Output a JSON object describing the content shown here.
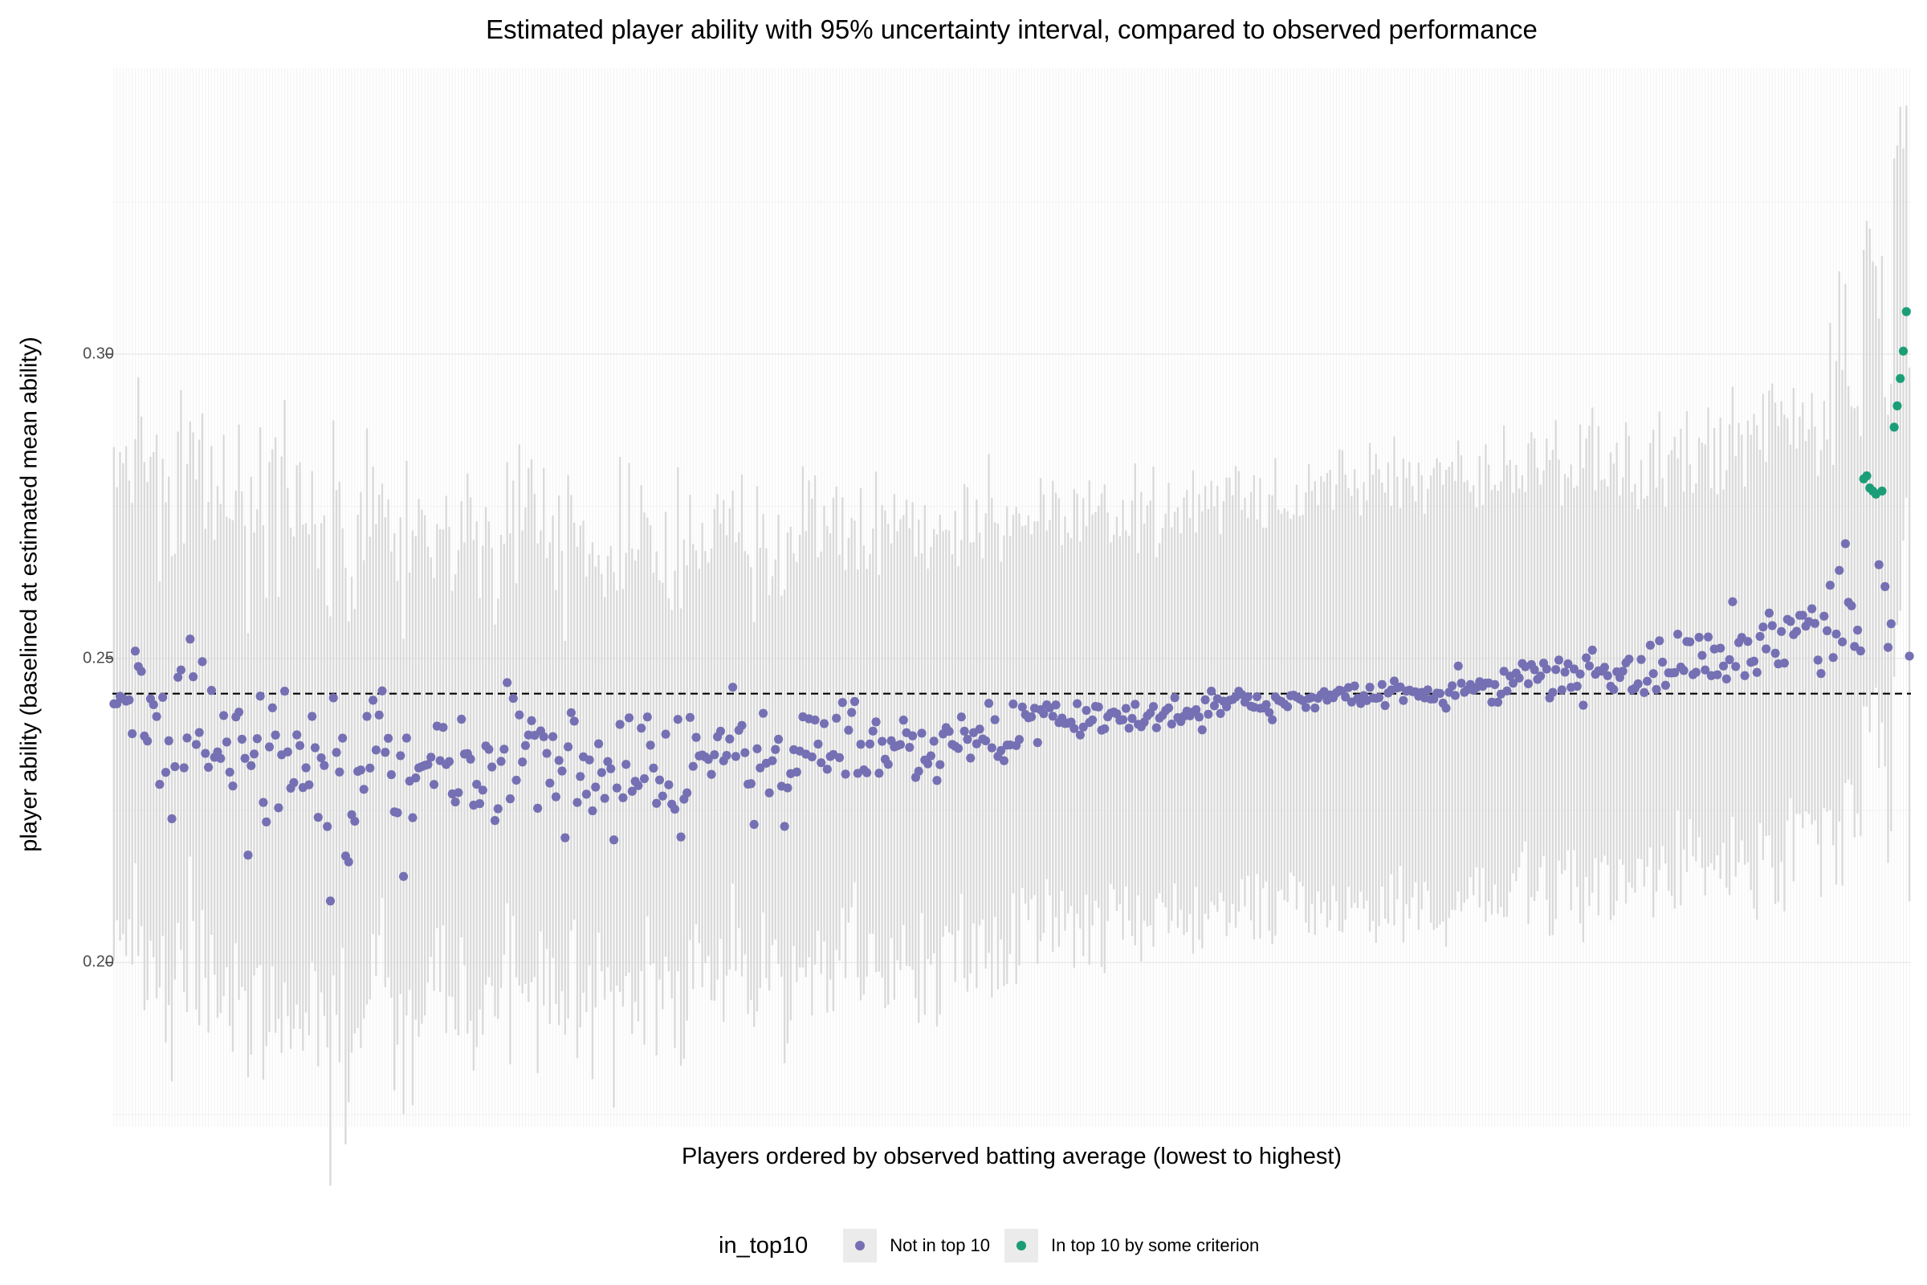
{
  "chart_data": {
    "type": "scatter",
    "title": "Estimated player ability with 95% uncertainty interval, compared to observed performance",
    "xlabel": "Players ordered by observed batting average (lowest to highest)",
    "ylabel": "player ability (baselined at estimated mean ability)",
    "ylim": [
      0.173,
      0.347
    ],
    "yticks": [
      0.2,
      0.25,
      0.3
    ],
    "ytick_labels": [
      "0.20",
      "0.25",
      "0.30"
    ],
    "x_tick_labels_shown": false,
    "n_players": 590,
    "reference_line": {
      "y": 0.2442,
      "style": "dashed"
    },
    "grid": true,
    "legend": {
      "title": "in_top10",
      "position": "bottom",
      "entries": [
        {
          "label": "Not in top 10",
          "color": "#7570b3"
        },
        {
          "label": "In top 10 by some criterion",
          "color": "#1b9e77"
        }
      ]
    },
    "colors": {
      "not_top10": "#7570b3",
      "top10": "#1b9e77",
      "interval": "#d9d9d9",
      "grid": "#f2f2f2"
    },
    "series_profile": {
      "estimate_anchor_index": [
        0,
        50,
        150,
        250,
        330,
        400,
        480,
        560
      ],
      "estimate_anchor_value": [
        0.2435,
        0.232,
        0.2325,
        0.236,
        0.2405,
        0.2435,
        0.2465,
        0.2545
      ],
      "point_sd": [
        0.0065,
        0.0065,
        0.0055,
        0.004,
        0.0015,
        0.001,
        0.002,
        0.004
      ],
      "interval_half_width": [
        0.04,
        0.042,
        0.038,
        0.036,
        0.034,
        0.034,
        0.035,
        0.035
      ],
      "note_top10_points": "top-10 players are the last positions; estimates about 0.277 to 0.307"
    },
    "top10_points": [
      {
        "index": 574,
        "value": 0.2795
      },
      {
        "index": 575,
        "value": 0.28
      },
      {
        "index": 576,
        "value": 0.278
      },
      {
        "index": 577,
        "value": 0.2775
      },
      {
        "index": 578,
        "value": 0.277
      },
      {
        "index": 580,
        "value": 0.2775
      },
      {
        "index": 584,
        "value": 0.288
      },
      {
        "index": 585,
        "value": 0.2915
      },
      {
        "index": 586,
        "value": 0.296
      },
      {
        "index": 587,
        "value": 0.3005
      },
      {
        "index": 588,
        "value": 0.307
      }
    ]
  }
}
